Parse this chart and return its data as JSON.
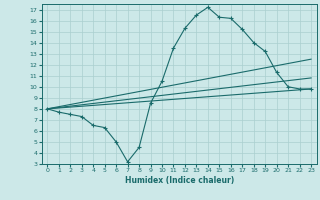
{
  "xlabel": "Humidex (Indice chaleur)",
  "bg_color": "#cce8e8",
  "line_color": "#1a6b6b",
  "grid_color": "#aacfcf",
  "xlim": [
    -0.5,
    23.5
  ],
  "ylim": [
    3,
    17.5
  ],
  "xticks": [
    0,
    1,
    2,
    3,
    4,
    5,
    6,
    7,
    8,
    9,
    10,
    11,
    12,
    13,
    14,
    15,
    16,
    17,
    18,
    19,
    20,
    21,
    22,
    23
  ],
  "yticks": [
    3,
    4,
    5,
    6,
    7,
    8,
    9,
    10,
    11,
    12,
    13,
    14,
    15,
    16,
    17
  ],
  "main_x": [
    0,
    1,
    2,
    3,
    4,
    5,
    6,
    7,
    8,
    9,
    10,
    11,
    12,
    13,
    14,
    15,
    16,
    17,
    18,
    19,
    20,
    21,
    22,
    23
  ],
  "main_y": [
    8.0,
    7.7,
    7.5,
    7.3,
    6.5,
    6.3,
    5.0,
    3.2,
    4.5,
    8.5,
    10.5,
    13.5,
    15.3,
    16.5,
    17.2,
    16.3,
    16.2,
    15.2,
    14.0,
    13.2,
    11.3,
    10.0,
    9.8,
    9.8
  ],
  "trend_lines": [
    {
      "x": [
        0,
        23
      ],
      "y": [
        8.0,
        9.8
      ]
    },
    {
      "x": [
        0,
        23
      ],
      "y": [
        8.0,
        10.8
      ]
    },
    {
      "x": [
        0,
        23
      ],
      "y": [
        8.0,
        12.5
      ]
    }
  ]
}
